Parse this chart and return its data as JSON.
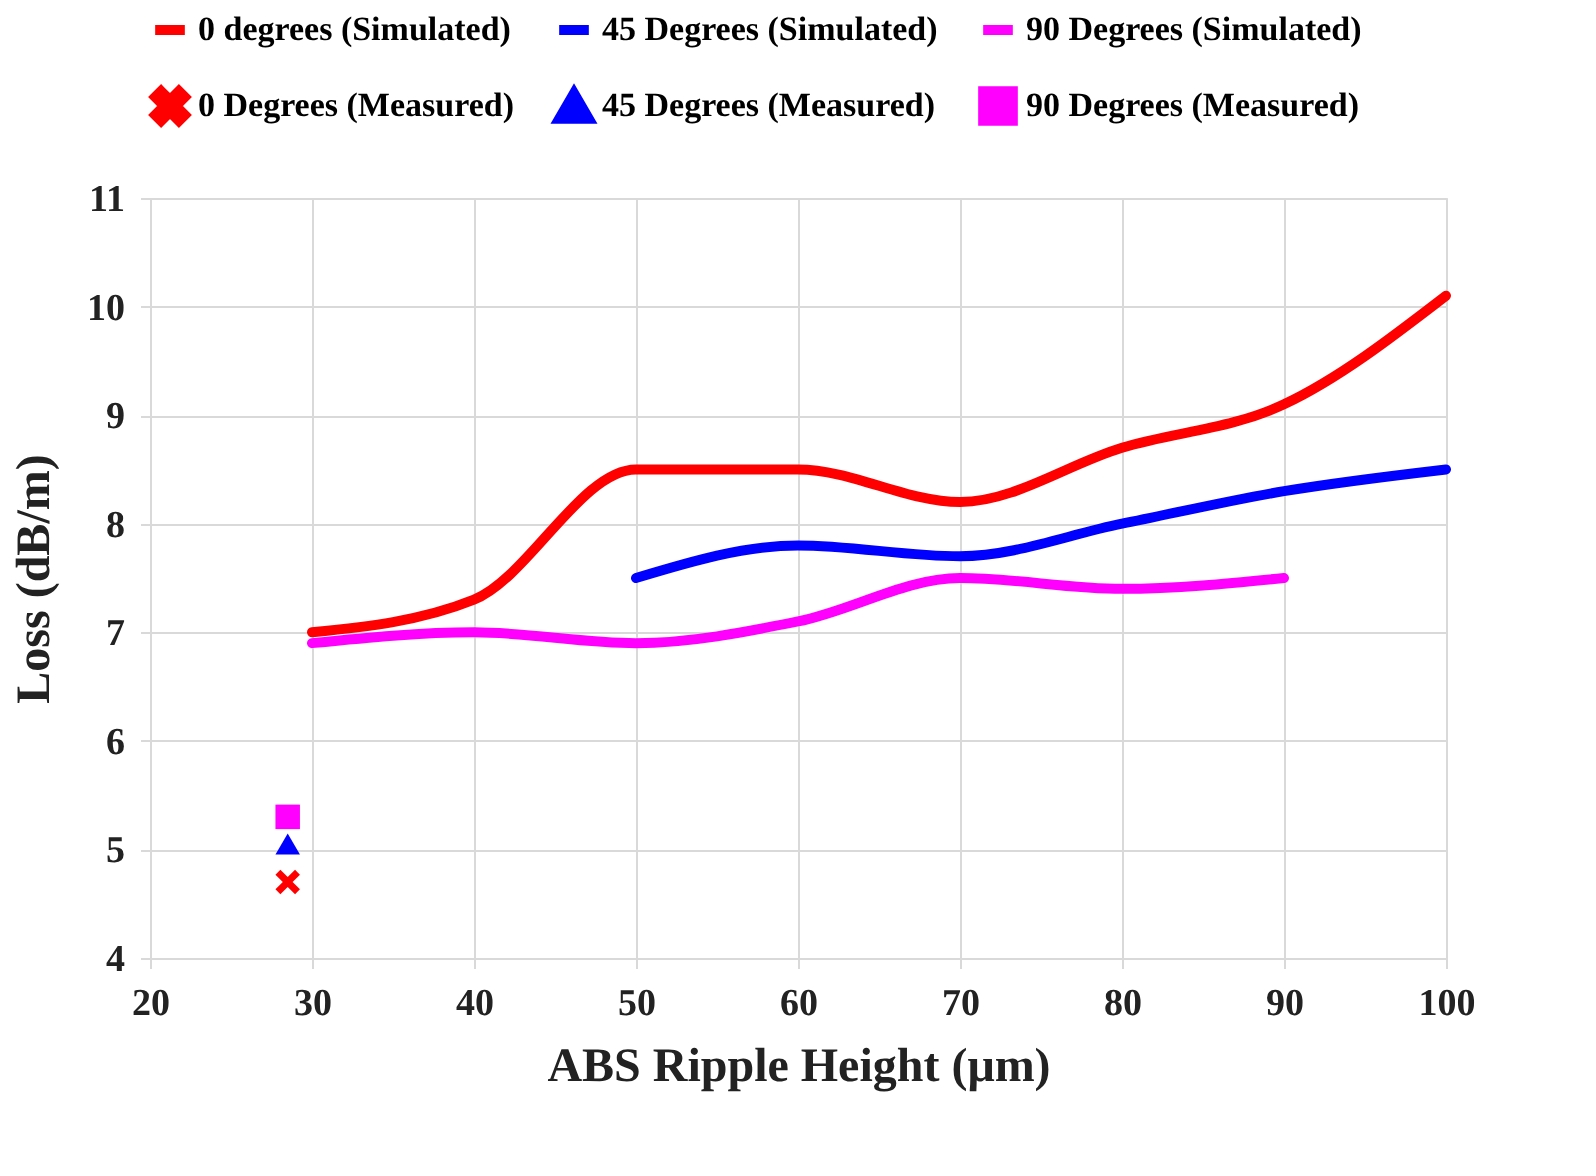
{
  "chart_data": {
    "type": "line",
    "xlabel": "ABS Ripple Height (μm)",
    "ylabel": "Loss (dB/m)",
    "xlim": [
      20,
      100
    ],
    "xticks": [
      20,
      30,
      40,
      50,
      60,
      70,
      80,
      90,
      100
    ],
    "ylim": [
      4,
      11
    ],
    "yticks": [
      4,
      5,
      6,
      7,
      8,
      9,
      10,
      11
    ],
    "grid": true,
    "legend": "top",
    "line_style": "solid",
    "series": [
      {
        "name": "0 degrees (Simulated)",
        "marker": "none",
        "color": "#ff0000",
        "x": [
          30,
          40,
          50,
          60,
          70,
          80,
          90,
          100
        ],
        "values": [
          7.0,
          7.3,
          8.5,
          8.5,
          8.2,
          8.7,
          9.1,
          10.1
        ]
      },
      {
        "name": "45 Degrees (Simulated)",
        "marker": "none",
        "color": "#0000ff",
        "x": [
          50,
          60,
          70,
          80,
          90,
          100
        ],
        "values": [
          7.5,
          7.8,
          7.7,
          8.0,
          8.3,
          8.5
        ]
      },
      {
        "name": "90 Degrees (Simulated)",
        "marker": "none",
        "color": "#ff00ff",
        "x": [
          30,
          40,
          50,
          60,
          70,
          80,
          90
        ],
        "values": [
          6.9,
          7.0,
          6.9,
          7.1,
          7.5,
          7.4,
          7.5
        ]
      },
      {
        "name": "0 Degrees (Measured)",
        "type": "scatter",
        "marker": "cross",
        "color": "#ff0000",
        "x": [
          28.5
        ],
        "values": [
          4.7
        ]
      },
      {
        "name": "45 Degrees (Measured)",
        "type": "scatter",
        "marker": "triangle",
        "color": "#0000ff",
        "x": [
          28.5
        ],
        "values": [
          5.05
        ]
      },
      {
        "name": "90 Degrees (Measured)",
        "type": "scatter",
        "marker": "square",
        "color": "#ff00ff",
        "x": [
          28.5
        ],
        "values": [
          5.3
        ]
      }
    ]
  }
}
